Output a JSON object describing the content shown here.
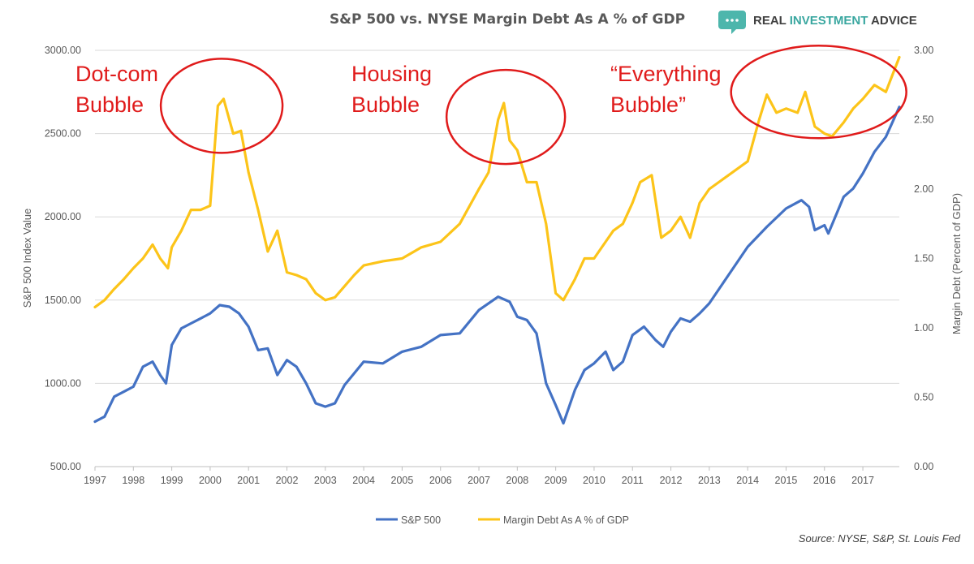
{
  "brand": {
    "word1": "REAL ",
    "word2": "INVESTMENT",
    "word3": " ADVICE",
    "icon": "speech-bubble-icon",
    "color_dark": "#404040",
    "color_accent": "#3aa7a0",
    "icon_color": "#4db6ac"
  },
  "source": "Source: NYSE, S&P, St. Louis Fed",
  "chart_data": {
    "type": "line",
    "title": "S&P 500 vs. NYSE Margin Debt As A % of GDP",
    "ylabel": "S&P 500 Index Value",
    "y2label": "Margin Debt (Percent of GDP)",
    "xlabel": "",
    "x_ticks": [
      "1997",
      "1998",
      "1999",
      "2000",
      "2001",
      "2002",
      "2003",
      "2004",
      "2005",
      "2006",
      "2007",
      "2008",
      "2009",
      "2010",
      "2011",
      "2012",
      "2013",
      "2014",
      "2015",
      "2016",
      "2017"
    ],
    "xlim": [
      1997,
      2017.95
    ],
    "ylim": [
      500,
      3000
    ],
    "y_ticks": [
      "500.00",
      "1000.00",
      "1500.00",
      "2000.00",
      "2500.00",
      "3000.00"
    ],
    "y2lim": [
      0,
      3
    ],
    "y2_ticks": [
      "0.00",
      "0.50",
      "1.00",
      "1.50",
      "2.00",
      "2.50",
      "3.00"
    ],
    "grid": "horizontal",
    "legend": "bottom",
    "series": [
      {
        "name": "S&P 500",
        "axis": "left",
        "color": "#4472c4",
        "x": [
          1997.0,
          1997.25,
          1997.5,
          1997.75,
          1998.0,
          1998.25,
          1998.5,
          1998.7,
          1998.85,
          1999.0,
          1999.25,
          1999.5,
          1999.75,
          2000.0,
          2000.25,
          2000.5,
          2000.75,
          2001.0,
          2001.25,
          2001.5,
          2001.75,
          2002.0,
          2002.25,
          2002.5,
          2002.75,
          2003.0,
          2003.25,
          2003.5,
          2003.75,
          2004.0,
          2004.5,
          2005.0,
          2005.5,
          2006.0,
          2006.5,
          2007.0,
          2007.5,
          2007.8,
          2008.0,
          2008.25,
          2008.5,
          2008.75,
          2009.0,
          2009.2,
          2009.5,
          2009.75,
          2010.0,
          2010.3,
          2010.5,
          2010.75,
          2011.0,
          2011.3,
          2011.6,
          2011.8,
          2012.0,
          2012.25,
          2012.5,
          2012.75,
          2013.0,
          2013.5,
          2014.0,
          2014.5,
          2015.0,
          2015.4,
          2015.6,
          2015.75,
          2016.0,
          2016.1,
          2016.5,
          2016.75,
          2017.0,
          2017.3,
          2017.6,
          2017.95
        ],
        "values": [
          770,
          800,
          920,
          950,
          980,
          1100,
          1130,
          1050,
          1000,
          1230,
          1330,
          1360,
          1390,
          1420,
          1470,
          1460,
          1420,
          1340,
          1200,
          1210,
          1050,
          1140,
          1100,
          1000,
          880,
          860,
          880,
          990,
          1060,
          1130,
          1120,
          1190,
          1220,
          1290,
          1300,
          1440,
          1520,
          1490,
          1400,
          1380,
          1300,
          1000,
          870,
          760,
          960,
          1080,
          1120,
          1190,
          1080,
          1130,
          1290,
          1340,
          1260,
          1220,
          1310,
          1390,
          1370,
          1420,
          1480,
          1650,
          1820,
          1940,
          2050,
          2100,
          2060,
          1920,
          1950,
          1900,
          2120,
          2170,
          2260,
          2390,
          2480,
          2660
        ]
      },
      {
        "name": "Margin Debt As A % of GDP",
        "axis": "right",
        "color": "#fcc419",
        "x": [
          1997.0,
          1997.25,
          1997.5,
          1997.75,
          1998.0,
          1998.25,
          1998.5,
          1998.7,
          1998.9,
          1999.0,
          1999.25,
          1999.5,
          1999.75,
          2000.0,
          2000.2,
          2000.35,
          2000.6,
          2000.8,
          2001.0,
          2001.25,
          2001.5,
          2001.75,
          2002.0,
          2002.25,
          2002.5,
          2002.75,
          2003.0,
          2003.25,
          2003.5,
          2003.75,
          2004.0,
          2004.5,
          2005.0,
          2005.5,
          2006.0,
          2006.5,
          2007.0,
          2007.25,
          2007.5,
          2007.65,
          2007.8,
          2008.0,
          2008.25,
          2008.5,
          2008.75,
          2009.0,
          2009.2,
          2009.5,
          2009.75,
          2010.0,
          2010.3,
          2010.5,
          2010.75,
          2011.0,
          2011.2,
          2011.5,
          2011.75,
          2012.0,
          2012.25,
          2012.5,
          2012.75,
          2013.0,
          2013.5,
          2014.0,
          2014.3,
          2014.5,
          2014.75,
          2015.0,
          2015.3,
          2015.5,
          2015.75,
          2016.0,
          2016.2,
          2016.5,
          2016.75,
          2017.0,
          2017.3,
          2017.6,
          2017.95
        ],
        "values": [
          1.15,
          1.2,
          1.28,
          1.35,
          1.43,
          1.5,
          1.6,
          1.5,
          1.43,
          1.58,
          1.7,
          1.85,
          1.85,
          1.88,
          2.6,
          2.65,
          2.4,
          2.42,
          2.12,
          1.85,
          1.55,
          1.7,
          1.4,
          1.38,
          1.35,
          1.25,
          1.2,
          1.22,
          1.3,
          1.38,
          1.45,
          1.48,
          1.5,
          1.58,
          1.62,
          1.75,
          2.0,
          2.12,
          2.5,
          2.62,
          2.35,
          2.28,
          2.05,
          2.05,
          1.75,
          1.25,
          1.2,
          1.35,
          1.5,
          1.5,
          1.62,
          1.7,
          1.75,
          1.9,
          2.05,
          2.1,
          1.65,
          1.7,
          1.8,
          1.65,
          1.9,
          2.0,
          2.1,
          2.2,
          2.5,
          2.68,
          2.55,
          2.58,
          2.55,
          2.7,
          2.45,
          2.4,
          2.38,
          2.48,
          2.58,
          2.65,
          2.75,
          2.7,
          2.95
        ]
      }
    ],
    "annotations": [
      {
        "lines": [
          "Dot-com",
          "Bubble"
        ],
        "circle_center": [
          2000.3,
          2.6
        ],
        "color": "#e01b1b"
      },
      {
        "lines": [
          "Housing",
          "Bubble"
        ],
        "circle_center": [
          2007.7,
          2.52
        ],
        "color": "#e01b1b"
      },
      {
        "lines": [
          "“Everything",
          "Bubble”"
        ],
        "circle_center": [
          2015.85,
          2.7
        ],
        "color": "#e01b1b"
      }
    ]
  }
}
